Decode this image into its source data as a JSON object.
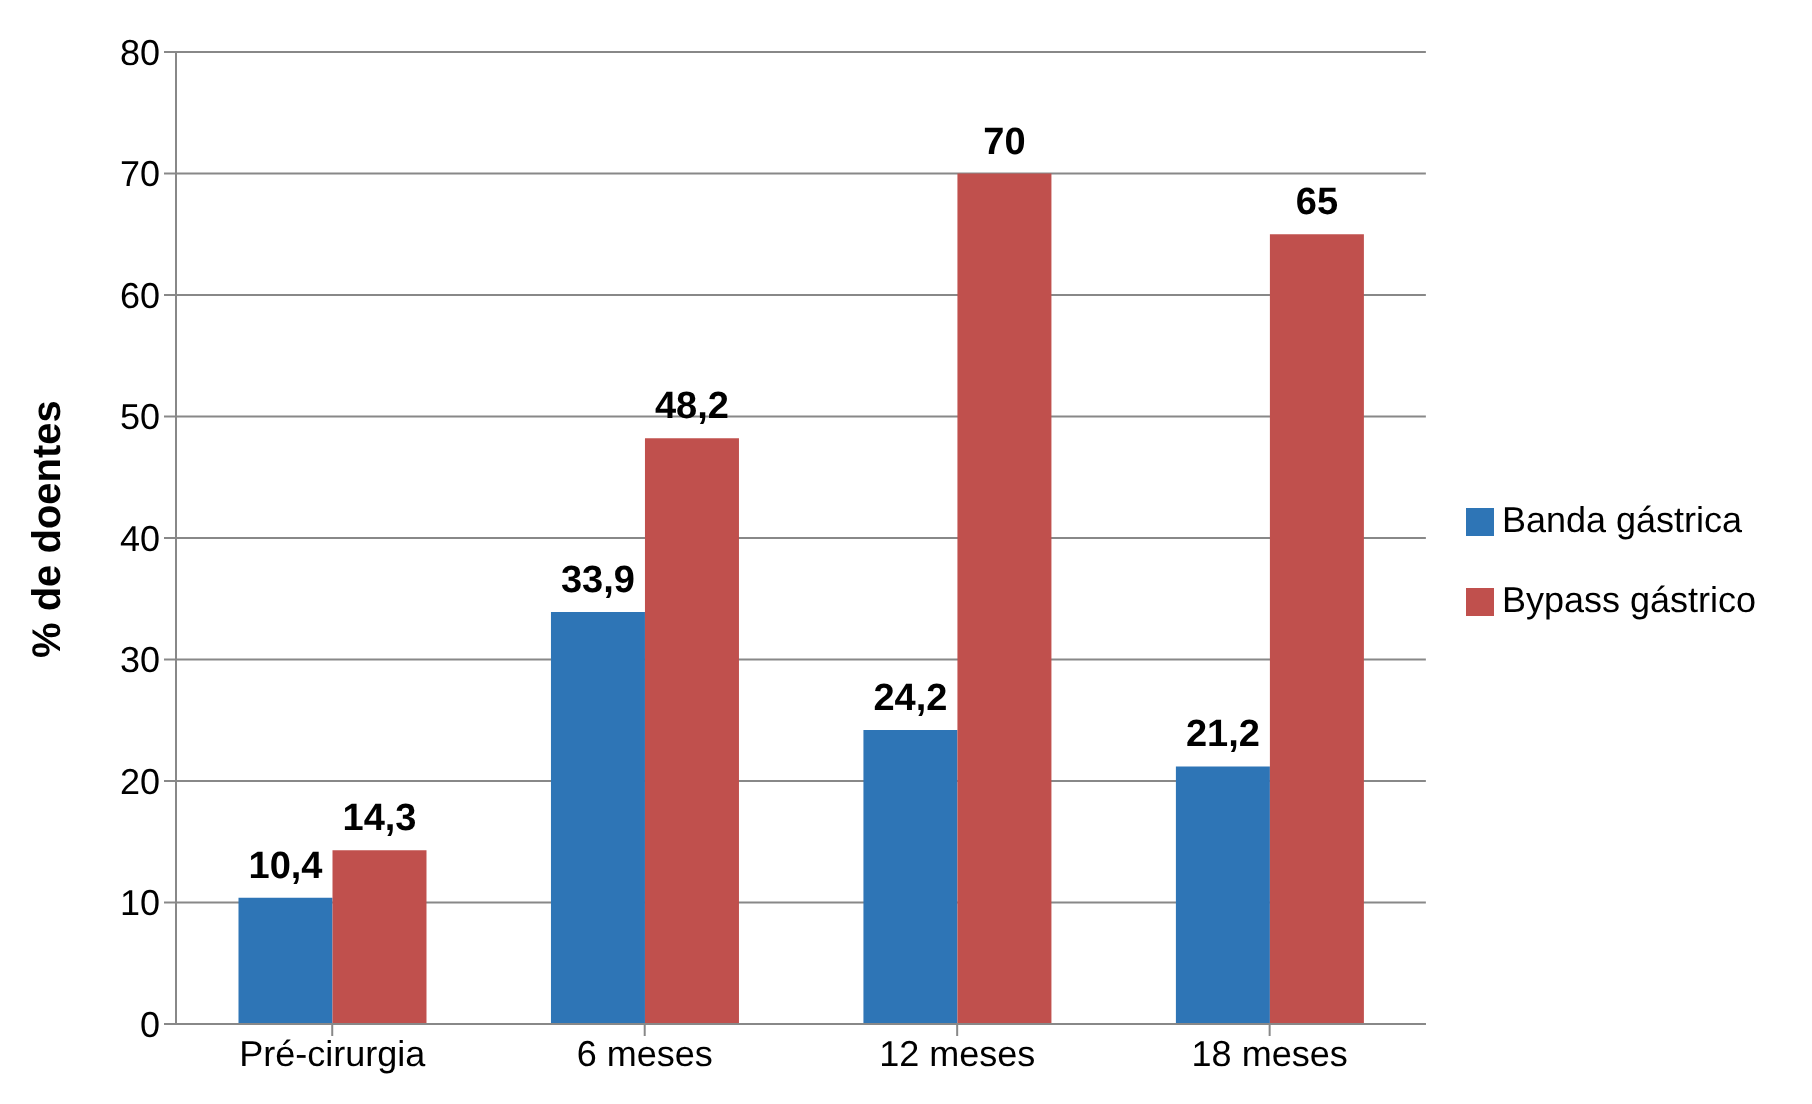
{
  "chart_data": {
    "type": "bar",
    "ylabel": "% de doentes",
    "categories": [
      "Pré-cirurgia",
      "6 meses",
      "12 meses",
      "18 meses"
    ],
    "series": [
      {
        "name": "Banda gástrica",
        "color": "#2e75b6",
        "values": [
          10.4,
          33.9,
          24.2,
          21.2
        ],
        "value_labels": [
          "10,4",
          "33,9",
          "24,2",
          "21,2"
        ]
      },
      {
        "name": "Bypass gástrico",
        "color": "#c0504d",
        "values": [
          14.3,
          48.2,
          70,
          65
        ],
        "value_labels": [
          "14,3",
          "48,2",
          "70",
          "65"
        ]
      }
    ],
    "ylim": [
      0,
      80
    ],
    "yticks": [
      0,
      10,
      20,
      30,
      40,
      50,
      60,
      70,
      80
    ],
    "grid": "y",
    "legend": "right"
  }
}
